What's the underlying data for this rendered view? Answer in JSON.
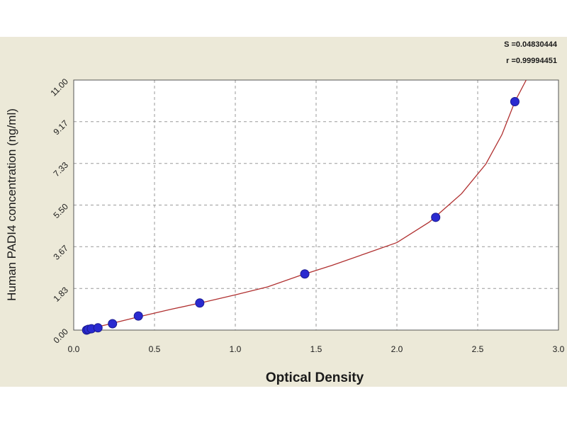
{
  "colors": {
    "panel": "#ece9d8",
    "plot": "#ffffff",
    "grid": "#9a9a9a",
    "curve": "#b03030",
    "points": "#2a2ad0",
    "points_edge": "#1a1a90",
    "text": "#1a1a1a"
  },
  "stats": {
    "s_text": "S =0.04830444",
    "r_text": "r =0.99994451"
  },
  "chart_data": {
    "type": "scatter",
    "xlabel": "Optical Density",
    "ylabel": "Human PADI4 concentration (ng/ml)",
    "xlim": [
      0,
      3
    ],
    "ylim": [
      0,
      11.0
    ],
    "x_ticks": [
      0,
      0.5,
      1.0,
      1.5,
      2.0,
      2.5,
      3.0
    ],
    "x_tick_labels": [
      "0.0",
      "0.5",
      "1.0",
      "1.5",
      "2.0",
      "2.5",
      "3.0"
    ],
    "y_ticks": [
      0,
      1.83,
      3.67,
      5.5,
      7.33,
      9.17,
      11.0
    ],
    "y_tick_labels": [
      "0.00",
      "1.83",
      "3.67",
      "5.50",
      "7.33",
      "9.17",
      "11.00"
    ],
    "grid": true,
    "series": [
      {
        "values": [
          {
            "x": 0.08,
            "y": 0.0
          },
          {
            "x": 0.09,
            "y": 0.03
          },
          {
            "x": 0.11,
            "y": 0.06
          },
          {
            "x": 0.15,
            "y": 0.1
          },
          {
            "x": 0.24,
            "y": 0.28
          },
          {
            "x": 0.4,
            "y": 0.62
          },
          {
            "x": 0.78,
            "y": 1.19
          },
          {
            "x": 1.43,
            "y": 2.47
          },
          {
            "x": 2.24,
            "y": 4.96
          },
          {
            "x": 2.73,
            "y": 10.05
          }
        ]
      }
    ],
    "fit_curve": [
      {
        "x": 0.06,
        "y": 0.0
      },
      {
        "x": 0.2,
        "y": 0.23
      },
      {
        "x": 0.4,
        "y": 0.58
      },
      {
        "x": 0.6,
        "y": 0.91
      },
      {
        "x": 0.8,
        "y": 1.22
      },
      {
        "x": 1.0,
        "y": 1.55
      },
      {
        "x": 1.2,
        "y": 1.9
      },
      {
        "x": 1.4,
        "y": 2.4
      },
      {
        "x": 1.6,
        "y": 2.85
      },
      {
        "x": 1.8,
        "y": 3.35
      },
      {
        "x": 2.0,
        "y": 3.85
      },
      {
        "x": 2.2,
        "y": 4.75
      },
      {
        "x": 2.4,
        "y": 6.0
      },
      {
        "x": 2.55,
        "y": 7.3
      },
      {
        "x": 2.65,
        "y": 8.6
      },
      {
        "x": 2.73,
        "y": 10.05
      },
      {
        "x": 2.8,
        "y": 11.0
      }
    ]
  }
}
